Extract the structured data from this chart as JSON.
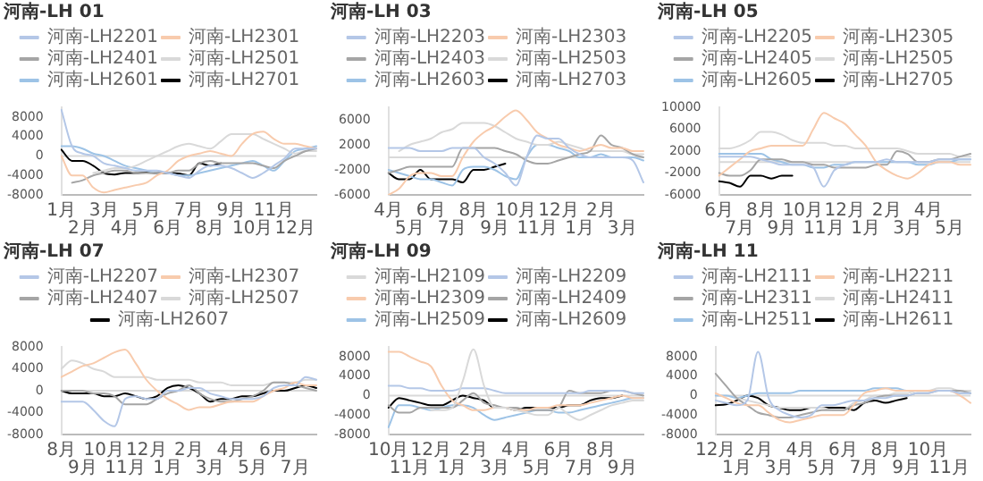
{
  "chart_data": [
    {
      "type": "line",
      "title": "河南-LH 01",
      "categories": [
        "1月",
        null,
        "2月",
        null,
        "3月",
        null,
        "4月",
        null,
        "5月",
        null,
        "6月",
        null,
        "7月",
        null,
        "8月",
        null,
        "9月",
        null,
        "10月",
        null,
        "11月",
        null,
        "12月",
        null,
        null
      ],
      "ylim": [
        -8000,
        10000
      ],
      "yticks": [
        -8000,
        -4000,
        0,
        4000,
        8000
      ],
      "grid": false,
      "legend": "top",
      "marker": "none",
      "line_style": "solid",
      "ref_lines": [
        {
          "axis": "y",
          "value": 0,
          "color": "#d9d9d9"
        }
      ],
      "series": [
        {
          "name": "河南-LH2201",
          "color": "#b4c7e7",
          "values": [
            9500,
            2000,
            500,
            0,
            -1500,
            -2000,
            -2500,
            -3000,
            -3000,
            -3000,
            -3500,
            -4000,
            -4500,
            -3000,
            -2000,
            -2000,
            -2500,
            -3500,
            -4500,
            -3500,
            -2000,
            -500,
            1500,
            1500,
            1500
          ]
        },
        {
          "name": "河南-LH2301",
          "color": "#f8cbad",
          "values": [
            0,
            -4000,
            -4000,
            -6500,
            -7500,
            -7000,
            -6500,
            -6000,
            -5500,
            -4000,
            -3000,
            -1000,
            0,
            500,
            1000,
            500,
            0,
            2500,
            4500,
            5000,
            3500,
            2500,
            2500,
            2000,
            1500
          ]
        },
        {
          "name": "河南-LH2401",
          "color": "#a5a5a5",
          "values": [
            null,
            -5500,
            -5000,
            -4000,
            -3500,
            -3000,
            -3000,
            -3500,
            -3500,
            -3500,
            -3500,
            -3000,
            -3000,
            -1500,
            -1000,
            -1500,
            -1500,
            -1500,
            -1500,
            -2000,
            -2500,
            -1000,
            0,
            1000,
            1500
          ]
        },
        {
          "name": "河南-LH2501",
          "color": "#d9d9d9",
          "values": [
            null,
            null,
            null,
            -3500,
            -3000,
            -2500,
            -2500,
            -2000,
            -1000,
            0,
            1000,
            2000,
            2500,
            2000,
            1500,
            3000,
            4500,
            4500,
            4500,
            3500,
            2500,
            1500,
            500,
            1000,
            1000
          ]
        },
        {
          "name": "河南-LH2601",
          "color": "#9dc3e6",
          "values": [
            2000,
            2000,
            1500,
            500,
            0,
            -1000,
            -2000,
            -2500,
            -3000,
            -3500,
            -3500,
            -4000,
            -4000,
            -3500,
            -3000,
            -2500,
            -2000,
            -1500,
            -1000,
            -2000,
            -3000,
            -1000,
            1000,
            1500,
            2000
          ]
        },
        {
          "name": "河南-LH2701",
          "color": "#000000",
          "values": [
            1300,
            -1000,
            -1000,
            -2000,
            -3500,
            -3800,
            -3500,
            -3500,
            -3400,
            -3500,
            -3500,
            -3600,
            -4000,
            -1500,
            -2000,
            -1500,
            null,
            null,
            null,
            null,
            null,
            null,
            null,
            null,
            null
          ]
        }
      ]
    },
    {
      "type": "line",
      "title": "河南-LH 03",
      "categories": [
        "4月",
        null,
        "5月",
        null,
        "6月",
        null,
        "7月",
        null,
        "8月",
        null,
        "9月",
        null,
        "10月",
        null,
        "11月",
        null,
        "12月",
        null,
        "1月",
        null,
        "2月",
        null,
        "3月",
        null,
        null
      ],
      "ylim": [
        -6000,
        8000
      ],
      "yticks": [
        -6000,
        -2000,
        2000,
        6000
      ],
      "grid": false,
      "legend": "top",
      "marker": "none",
      "line_style": "solid",
      "ref_lines": [
        {
          "axis": "y",
          "value": 0,
          "color": "#d9d9d9"
        }
      ],
      "series": [
        {
          "name": "河南-LH2203",
          "color": "#b4c7e7",
          "values": [
            1500,
            1500,
            1500,
            1000,
            1000,
            1000,
            1500,
            1500,
            1500,
            0,
            -1000,
            -2500,
            -4500,
            0,
            3500,
            3000,
            3000,
            1500,
            500,
            0,
            0,
            0,
            0,
            -500,
            -4000
          ]
        },
        {
          "name": "河南-LH2303",
          "color": "#f8cbad",
          "values": [
            -6000,
            -5000,
            -3000,
            -2500,
            -2500,
            -3000,
            -3000,
            0,
            2500,
            4000,
            5000,
            6500,
            7500,
            6000,
            4000,
            3000,
            2000,
            1500,
            1000,
            1500,
            2000,
            1500,
            1500,
            1000,
            1000
          ]
        },
        {
          "name": "河南-LH2403",
          "color": "#a5a5a5",
          "values": [
            -2500,
            -2000,
            -1500,
            -1500,
            -1500,
            -1500,
            -1500,
            1500,
            1500,
            1500,
            1500,
            1000,
            500,
            -500,
            -1000,
            -1000,
            -500,
            0,
            500,
            1000,
            3500,
            2000,
            1500,
            500,
            0
          ]
        },
        {
          "name": "河南-LH2503",
          "color": "#d9d9d9",
          "values": [
            null,
            1000,
            2000,
            2500,
            3000,
            4000,
            4500,
            5500,
            5500,
            5500,
            5000,
            4000,
            3000,
            2500,
            2000,
            2000,
            2500,
            2000,
            1500,
            1000,
            1000,
            1000,
            1000,
            500,
            500
          ]
        },
        {
          "name": "河南-LH2603",
          "color": "#9dc3e6",
          "values": [
            -2000,
            -2500,
            -3000,
            -3500,
            -3500,
            -4000,
            -4500,
            -2000,
            -1500,
            -1500,
            -2000,
            -3000,
            -3500,
            0,
            2000,
            2000,
            1500,
            1000,
            0,
            0,
            500,
            0,
            0,
            0,
            -500
          ]
        },
        {
          "name": "河南-LH2703",
          "color": "#000000",
          "values": [
            -2500,
            -3500,
            -3500,
            -2000,
            -3500,
            -3500,
            -3500,
            -4000,
            -2000,
            -2000,
            -1500,
            -1000,
            null,
            null,
            null,
            null,
            null,
            null,
            null,
            null,
            null,
            null,
            null,
            null,
            null
          ]
        }
      ]
    },
    {
      "type": "line",
      "title": "河南-LH 05",
      "categories": [
        "6月",
        null,
        "7月",
        null,
        "8月",
        null,
        "9月",
        null,
        "10月",
        null,
        "11月",
        null,
        "12月",
        null,
        "1月",
        null,
        "2月",
        null,
        "3月",
        null,
        "4月",
        null,
        "5月",
        null,
        null
      ],
      "ylim": [
        -6000,
        10000
      ],
      "yticks": [
        -6000,
        -2000,
        2000,
        6000,
        10000
      ],
      "grid": false,
      "legend": "top",
      "marker": "none",
      "line_style": "solid",
      "ref_lines": [
        {
          "axis": "y",
          "value": 0,
          "color": "#d9d9d9"
        }
      ],
      "series": [
        {
          "name": "河南-LH2205",
          "color": "#b4c7e7",
          "values": [
            1000,
            1000,
            1000,
            1000,
            500,
            0,
            -500,
            -500,
            -500,
            -1000,
            -4500,
            -1500,
            -500,
            0,
            0,
            0,
            500,
            0,
            0,
            0,
            0,
            500,
            500,
            500,
            500
          ]
        },
        {
          "name": "河南-LH2305",
          "color": "#f8cbad",
          "values": [
            -2500,
            -1000,
            500,
            2000,
            2500,
            3000,
            3000,
            3000,
            3000,
            6000,
            9000,
            8000,
            7000,
            5000,
            3000,
            0,
            -1500,
            -2500,
            -3000,
            -2000,
            -500,
            0,
            0,
            -500,
            -500
          ]
        },
        {
          "name": "河南-LH2405",
          "color": "#a5a5a5",
          "values": [
            -2000,
            -2500,
            -2500,
            -1500,
            500,
            500,
            500,
            0,
            0,
            -500,
            -500,
            -1000,
            -1000,
            -1000,
            -1000,
            -500,
            -500,
            2000,
            1500,
            0,
            0,
            500,
            500,
            1000,
            1500
          ]
        },
        {
          "name": "河南-LH2505",
          "color": "#d9d9d9",
          "values": [
            2500,
            2500,
            3000,
            4000,
            5500,
            5500,
            5000,
            4000,
            3500,
            3500,
            3500,
            3000,
            3000,
            2500,
            2500,
            2500,
            2500,
            2500,
            2000,
            1500,
            1500,
            1500,
            1500,
            1000,
            1000
          ]
        },
        {
          "name": "河南-LH2605",
          "color": "#9dc3e6",
          "values": [
            1500,
            1500,
            1500,
            1500,
            1500,
            500,
            0,
            -500,
            -500,
            -1000,
            -1000,
            -500,
            -500,
            0,
            0,
            0,
            0,
            0,
            0,
            -500,
            -500,
            0,
            0,
            500,
            500
          ]
        },
        {
          "name": "河南-LH2705",
          "color": "#000000",
          "values": [
            -3500,
            -3800,
            -4500,
            -2500,
            -2500,
            -3000,
            -2500,
            -2500,
            null,
            null,
            null,
            null,
            null,
            null,
            null,
            null,
            null,
            null,
            null,
            null,
            null,
            null,
            null,
            null,
            null
          ]
        }
      ]
    },
    {
      "type": "line",
      "title": "河南-LH 07",
      "categories": [
        "8月",
        null,
        "9月",
        null,
        "10月",
        null,
        "11月",
        null,
        "12月",
        null,
        "1月",
        null,
        "2月",
        null,
        "3月",
        null,
        "4月",
        null,
        "5月",
        null,
        "6月",
        null,
        "7月",
        null,
        null
      ],
      "ylim": [
        -8000,
        8000
      ],
      "yticks": [
        -8000,
        -4000,
        0,
        4000,
        8000
      ],
      "grid": false,
      "legend": "top",
      "marker": "none",
      "line_style": "solid",
      "ref_lines": [
        {
          "axis": "y",
          "value": 0,
          "color": "#d9d9d9"
        }
      ],
      "series": [
        {
          "name": "河南-LH2207",
          "color": "#b4c7e7",
          "values": [
            -2000,
            -2000,
            -2000,
            -3500,
            -5500,
            -6500,
            -1500,
            -1000,
            -1500,
            -1500,
            0,
            0,
            500,
            500,
            -500,
            -1000,
            -1500,
            -1500,
            -1500,
            -1000,
            500,
            1000,
            1000,
            2500,
            2000
          ]
        },
        {
          "name": "河南-LH2307",
          "color": "#f8cbad",
          "values": [
            2500,
            3500,
            4500,
            5000,
            6000,
            7000,
            7500,
            5000,
            2000,
            0,
            -1500,
            -2500,
            -3500,
            -3000,
            -3000,
            -2500,
            -2000,
            -2000,
            -2000,
            -1000,
            0,
            500,
            1500,
            1000,
            1000
          ]
        },
        {
          "name": "河南-LH2407",
          "color": "#a5a5a5",
          "values": [
            0,
            0,
            0,
            -500,
            -500,
            -1000,
            -2500,
            -2500,
            -2500,
            -1500,
            -500,
            0,
            1000,
            -500,
            -1500,
            -2000,
            -2000,
            -1500,
            -1000,
            0,
            1500,
            1500,
            1000,
            500,
            0
          ]
        },
        {
          "name": "河南-LH2507",
          "color": "#d9d9d9",
          "values": [
            4000,
            5500,
            5000,
            4000,
            3500,
            2500,
            2500,
            2500,
            2500,
            2000,
            2000,
            2000,
            2000,
            1500,
            1500,
            1500,
            1000,
            1000,
            1000,
            1000,
            1500,
            1500,
            1500,
            2000,
            2000
          ]
        },
        {
          "name": "河南-LH2607",
          "color": "#000000",
          "values": [
            0,
            -500,
            -500,
            -500,
            -1000,
            -1000,
            -500,
            -1000,
            -1500,
            -1000,
            500,
            1000,
            500,
            -500,
            -2000,
            -1500,
            -1500,
            -1000,
            -1000,
            -500,
            0,
            0,
            500,
            1000,
            500
          ]
        }
      ]
    },
    {
      "type": "line",
      "title": "河南-LH 09",
      "categories": [
        "10月",
        null,
        "11月",
        null,
        "12月",
        null,
        "1月",
        null,
        "2月",
        null,
        "3月",
        null,
        "4月",
        null,
        "5月",
        null,
        "6月",
        null,
        "7月",
        null,
        "8月",
        null,
        "9月",
        null,
        null
      ],
      "ylim": [
        -8000,
        10000
      ],
      "yticks": [
        -8000,
        -4000,
        0,
        4000,
        8000
      ],
      "grid": false,
      "legend": "top",
      "marker": "none",
      "line_style": "solid",
      "ref_lines": [
        {
          "axis": "y",
          "value": 0,
          "color": "#d9d9d9"
        }
      ],
      "series": [
        {
          "name": "河南-LH2109",
          "color": "#d9d9d9",
          "values": [
            null,
            null,
            null,
            null,
            -3000,
            -3000,
            -2500,
            3000,
            9500,
            2000,
            -2500,
            -2500,
            -3000,
            -3500,
            -4000,
            -4000,
            -2500,
            -4000,
            -5000,
            -4000,
            -3000,
            -2000,
            -1500,
            -1000,
            -1000
          ]
        },
        {
          "name": "河南-LH2209",
          "color": "#b4c7e7",
          "values": [
            2000,
            2000,
            1500,
            1500,
            1000,
            1000,
            1000,
            1500,
            1500,
            1500,
            1000,
            500,
            500,
            500,
            500,
            500,
            500,
            500,
            500,
            1000,
            1000,
            1000,
            1000,
            500,
            500
          ]
        },
        {
          "name": "河南-LH2309",
          "color": "#f8cbad",
          "values": [
            9000,
            9000,
            8000,
            7000,
            6000,
            2000,
            -1000,
            -2000,
            -3000,
            -3000,
            -2500,
            -2500,
            -3000,
            -3000,
            -2500,
            -2500,
            -2000,
            -2000,
            -2000,
            -1500,
            -1000,
            -500,
            0,
            -500,
            -500
          ]
        },
        {
          "name": "河南-LH2409",
          "color": "#a5a5a5",
          "values": [
            -2000,
            -3500,
            -3500,
            -2500,
            -2500,
            -2500,
            -2500,
            -1000,
            500,
            -1500,
            -2000,
            -2500,
            -2500,
            -3000,
            -3000,
            -3000,
            -2500,
            1000,
            500,
            500,
            500,
            1000,
            1000,
            500,
            0
          ]
        },
        {
          "name": "河南-LH2509",
          "color": "#9dc3e6",
          "values": [
            -6500,
            -2000,
            -2000,
            -2500,
            -3000,
            -2500,
            -2000,
            -2000,
            -2500,
            -4000,
            -5000,
            -4500,
            -4000,
            -3500,
            -3000,
            -3000,
            -3500,
            -3500,
            -3000,
            -2500,
            -2000,
            -1500,
            -1000,
            -500,
            -500
          ]
        },
        {
          "name": "河南-LH2609",
          "color": "#000000",
          "values": [
            -2500,
            -500,
            -1000,
            -1500,
            -2000,
            -2000,
            -1000,
            0,
            -500,
            -1000,
            -2500,
            -2500,
            -3000,
            -2500,
            -2500,
            -2500,
            -2500,
            -2000,
            -2000,
            -1000,
            -500,
            -500,
            0,
            null,
            null
          ]
        }
      ]
    },
    {
      "type": "line",
      "title": "河南-LH 11",
      "categories": [
        "12月",
        null,
        "1月",
        null,
        "2月",
        null,
        "3月",
        null,
        "4月",
        null,
        "5月",
        null,
        "6月",
        null,
        "7月",
        null,
        "8月",
        null,
        "9月",
        null,
        "10月",
        null,
        "11月",
        null,
        null
      ],
      "ylim": [
        -8000,
        10000
      ],
      "yticks": [
        -8000,
        -4000,
        0,
        4000,
        8000
      ],
      "grid": false,
      "legend": "top",
      "marker": "none",
      "line_style": "solid",
      "ref_lines": [
        {
          "axis": "y",
          "value": 0,
          "color": "#d9d9d9"
        }
      ],
      "series": [
        {
          "name": "河南-LH2111",
          "color": "#b4c7e7",
          "values": [
            -1000,
            -1500,
            -2000,
            -1000,
            9000,
            -500,
            -3000,
            -4000,
            -4500,
            -4000,
            -2000,
            -2000,
            -1500,
            -1000,
            -1000,
            -500,
            -500,
            0,
            0,
            500,
            500,
            1000,
            1000,
            500,
            500
          ]
        },
        {
          "name": "河南-LH2211",
          "color": "#f8cbad",
          "values": [
            500,
            -500,
            -1500,
            -2000,
            -2000,
            -3500,
            -5000,
            -5500,
            -5000,
            -4500,
            -4000,
            -4000,
            -4000,
            -2000,
            500,
            1000,
            1500,
            1000,
            1000,
            1000,
            1000,
            1000,
            1000,
            0,
            -1500
          ]
        },
        {
          "name": "河南-LH2311",
          "color": "#a5a5a5",
          "values": [
            4500,
            2000,
            -500,
            -2000,
            -3500,
            -4000,
            -4500,
            -4500,
            -4000,
            -3500,
            -3000,
            -3000,
            -3000,
            -2000,
            -1500,
            -500,
            0,
            0,
            0,
            500,
            500,
            1000,
            1000,
            1000,
            500
          ]
        },
        {
          "name": "河南-LH2411",
          "color": "#d9d9d9",
          "values": [
            null,
            null,
            -500,
            -1000,
            -1500,
            -2000,
            -2500,
            -2500,
            -2500,
            -2500,
            -2500,
            -3000,
            -3000,
            -1500,
            -1000,
            0,
            0,
            500,
            500,
            1000,
            1000,
            1500,
            1500,
            1000,
            1000
          ]
        },
        {
          "name": "河南-LH2511",
          "color": "#9dc3e6",
          "values": [
            0,
            0,
            -500,
            0,
            500,
            500,
            500,
            500,
            1000,
            1000,
            1000,
            1000,
            1000,
            1000,
            1000,
            1500,
            1500,
            1500,
            1000,
            1000,
            1000,
            1000,
            1000,
            500,
            500
          ]
        },
        {
          "name": "河南-LH2611",
          "color": "#000000",
          "values": [
            -2000,
            -1800,
            -1000,
            0,
            -500,
            -2000,
            -2500,
            -3000,
            -3000,
            -2500,
            -2500,
            -2500,
            -2500,
            -3000,
            -1500,
            -1000,
            -1500,
            -1000,
            -500,
            null,
            null,
            null,
            null,
            null,
            null
          ]
        }
      ]
    }
  ]
}
